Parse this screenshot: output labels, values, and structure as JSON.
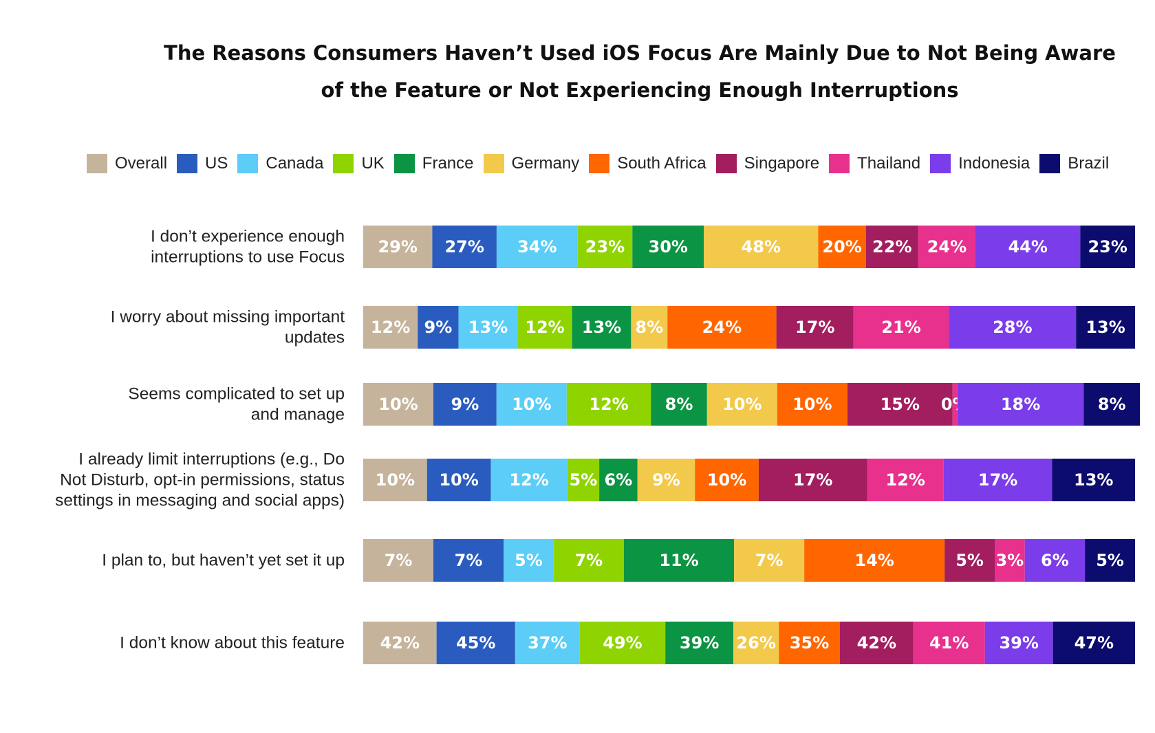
{
  "chart_data": {
    "type": "bar",
    "orientation": "horizontal",
    "stacked": true,
    "title_lines": [
      "The Reasons Consumers Haven’t Used iOS Focus Are Mainly Due to Not Being Aware",
      "of the Feature or Not Experiencing Enough Interruptions"
    ],
    "legend_position": "top",
    "categories": [
      [
        "I don’t experience enough",
        "interruptions to use Focus"
      ],
      [
        "I worry about missing important",
        "updates"
      ],
      [
        "Seems complicated to set up",
        "and manage"
      ],
      [
        "I already limit interruptions (e.g., Do",
        "Not Disturb, opt-in permissions, status",
        "settings in messaging and social apps)"
      ],
      [
        "I plan to, but haven’t yet set it up"
      ],
      [
        "I don’t know about this feature"
      ]
    ],
    "series": [
      {
        "name": "Overall",
        "color": "#c5b39c",
        "values": [
          29,
          12,
          10,
          10,
          7,
          42
        ]
      },
      {
        "name": "US",
        "color": "#2a5cbf",
        "values": [
          27,
          9,
          9,
          10,
          7,
          45
        ]
      },
      {
        "name": "Canada",
        "color": "#5bcdf7",
        "values": [
          34,
          13,
          10,
          12,
          5,
          37
        ]
      },
      {
        "name": "UK",
        "color": "#8fd400",
        "values": [
          23,
          12,
          12,
          5,
          7,
          49
        ]
      },
      {
        "name": "France",
        "color": "#0b9444",
        "values": [
          30,
          13,
          8,
          6,
          11,
          39
        ]
      },
      {
        "name": "Germany",
        "color": "#f3c94b",
        "values": [
          48,
          8,
          10,
          9,
          7,
          26
        ]
      },
      {
        "name": "South Africa",
        "color": "#ff6600",
        "values": [
          20,
          24,
          10,
          10,
          14,
          35
        ]
      },
      {
        "name": "Singapore",
        "color": "#a21e5e",
        "values": [
          22,
          17,
          15,
          17,
          5,
          42
        ]
      },
      {
        "name": "Thailand",
        "color": "#e8308d",
        "values": [
          24,
          21,
          0,
          12,
          3,
          41
        ]
      },
      {
        "name": "Indonesia",
        "color": "#7b3cea",
        "values": [
          44,
          28,
          18,
          17,
          6,
          39
        ]
      },
      {
        "name": "Brazil",
        "color": "#0c0c6e",
        "values": [
          23,
          13,
          8,
          13,
          5,
          47
        ]
      }
    ],
    "value_suffix": "%"
  }
}
